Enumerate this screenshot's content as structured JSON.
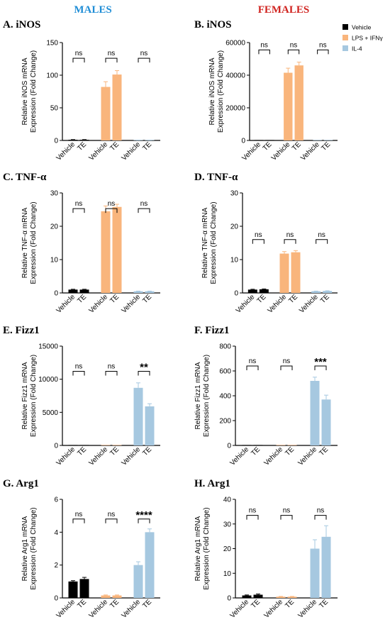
{
  "headers": {
    "males": "MALES",
    "females": "FEMALES",
    "males_color": "#1f8dd6",
    "females_color": "#d0231f"
  },
  "legend": [
    {
      "label": "Vehicle",
      "color": "#000000"
    },
    {
      "label": "LPS + IFNγ",
      "color": "#f9b57c"
    },
    {
      "label": "IL-4",
      "color": "#a6c8e0"
    }
  ],
  "chart_data": [
    {
      "id": "A",
      "title": "A. iNOS",
      "type": "bar",
      "ylabel": [
        "Relative iNOS mRNA",
        "Expression (Fold Change)"
      ],
      "ylim": [
        0,
        150
      ],
      "yticks": [
        0,
        50,
        100,
        150
      ],
      "categories": [
        "Vehicle",
        "TE",
        "Vehicle",
        "TE",
        "Vehicle",
        "TE"
      ],
      "groups": [
        "Vehicle",
        "LPS + IFNγ",
        "IL-4"
      ],
      "values": [
        1,
        1,
        82,
        101,
        0.3,
        0.3
      ],
      "errors": [
        0.3,
        0.3,
        8,
        6,
        0.1,
        0.1
      ],
      "significance": [
        "ns",
        "ns",
        "ns"
      ]
    },
    {
      "id": "B",
      "title": "B. iNOS",
      "type": "bar",
      "ylabel": [
        "Relative iNOS mRNA",
        "Expression (Fold Change)"
      ],
      "ylim": [
        0,
        60000
      ],
      "yticks": [
        0,
        20000,
        40000,
        60000
      ],
      "categories": [
        "Vehicle",
        "TE",
        "Vehicle",
        "TE",
        "Vehicle",
        "TE"
      ],
      "groups": [
        "Vehicle",
        "LPS + IFNγ",
        "IL-4"
      ],
      "values": [
        1,
        1,
        41500,
        46000,
        1,
        1
      ],
      "errors": [
        0,
        0,
        2800,
        2000,
        0,
        0
      ],
      "significance": [
        "ns",
        "ns",
        "ns"
      ]
    },
    {
      "id": "C",
      "title": "C. TNF-α",
      "type": "bar",
      "ylabel": [
        "Relative TNF-α mRNA",
        "Expression (Fold Change)"
      ],
      "ylim": [
        0,
        30
      ],
      "yticks": [
        0,
        10,
        20,
        30
      ],
      "categories": [
        "Vehicle",
        "TE",
        "Vehicle",
        "TE",
        "Vehicle",
        "TE"
      ],
      "groups": [
        "Vehicle",
        "LPS + IFNγ",
        "IL-4"
      ],
      "values": [
        1,
        1,
        24.5,
        25.8,
        0.5,
        0.5
      ],
      "errors": [
        0.1,
        0.1,
        1.6,
        0.8,
        0.05,
        0.05
      ],
      "significance": [
        "ns",
        "ns",
        "ns"
      ]
    },
    {
      "id": "D",
      "title": "D. TNF-α",
      "type": "bar",
      "ylabel": [
        "Relative TNF-α mRNA",
        "Expression (Fold Change)"
      ],
      "ylim": [
        0,
        30
      ],
      "yticks": [
        0,
        10,
        20,
        30
      ],
      "categories": [
        "Vehicle",
        "TE",
        "Vehicle",
        "TE",
        "Vehicle",
        "TE"
      ],
      "groups": [
        "Vehicle",
        "LPS + IFNγ",
        "IL-4"
      ],
      "values": [
        1,
        1.1,
        11.8,
        12.2,
        0.5,
        0.6
      ],
      "errors": [
        0.1,
        0.1,
        0.6,
        0.5,
        0.05,
        0.05
      ],
      "significance": [
        "ns",
        "ns",
        "ns"
      ]
    },
    {
      "id": "E",
      "title": "E. Fizz1",
      "type": "bar",
      "ylabel": [
        "Relative Fizz1 mRNA",
        "Expression (Fold Change)"
      ],
      "ylim": [
        0,
        15000
      ],
      "yticks": [
        0,
        5000,
        10000,
        15000
      ],
      "categories": [
        "Vehicle",
        "TE",
        "Vehicle",
        "TE",
        "Vehicle",
        "TE"
      ],
      "groups": [
        "Vehicle",
        "LPS + IFNγ",
        "IL-4"
      ],
      "values": [
        1,
        1,
        1,
        1,
        8700,
        5900
      ],
      "errors": [
        0,
        0,
        0,
        0,
        750,
        400
      ],
      "significance": [
        "ns",
        "ns",
        "**"
      ]
    },
    {
      "id": "F",
      "title": "F. Fizz1",
      "type": "bar",
      "ylabel": [
        "Relative Fizz1 mRNA",
        "Expression (Fold Change)"
      ],
      "ylim": [
        0,
        800
      ],
      "yticks": [
        0,
        200,
        400,
        600,
        800
      ],
      "categories": [
        "Vehicle",
        "TE",
        "Vehicle",
        "TE",
        "Vehicle",
        "TE"
      ],
      "groups": [
        "Vehicle",
        "LPS + IFNγ",
        "IL-4"
      ],
      "values": [
        1,
        1,
        1,
        1,
        520,
        370
      ],
      "errors": [
        0,
        0,
        0,
        0,
        30,
        35
      ],
      "significance": [
        "ns",
        "ns",
        "***"
      ]
    },
    {
      "id": "G",
      "title": "G. Arg1",
      "type": "bar",
      "ylabel": [
        "Relative Arg1 mRNA",
        "Expression (Fold Change)"
      ],
      "ylim": [
        0,
        6
      ],
      "yticks": [
        0,
        2,
        4,
        6
      ],
      "categories": [
        "Vehicle",
        "TE",
        "Vehicle",
        "TE",
        "Vehicle",
        "TE"
      ],
      "groups": [
        "Vehicle",
        "LPS + IFNγ",
        "IL-4"
      ],
      "values": [
        1,
        1.15,
        0.15,
        0.15,
        2.0,
        4.0
      ],
      "errors": [
        0.05,
        0.1,
        0.03,
        0.03,
        0.2,
        0.2
      ],
      "significance": [
        "ns",
        "ns",
        "****"
      ]
    },
    {
      "id": "H",
      "title": "H. Arg1",
      "type": "bar",
      "ylabel": [
        "Relative Arg1 mRNA",
        "Expression (Fold Change)"
      ],
      "ylim": [
        0,
        40
      ],
      "yticks": [
        0,
        10,
        20,
        30,
        40
      ],
      "categories": [
        "Vehicle",
        "TE",
        "Vehicle",
        "TE",
        "Vehicle",
        "TE"
      ],
      "groups": [
        "Vehicle",
        "LPS + IFNγ",
        "IL-4"
      ],
      "values": [
        1,
        1.3,
        0.5,
        0.5,
        20,
        24.8
      ],
      "errors": [
        0.2,
        0.3,
        0.1,
        0.1,
        3.6,
        4.5
      ],
      "significance": [
        "ns",
        "ns",
        "ns"
      ]
    }
  ]
}
